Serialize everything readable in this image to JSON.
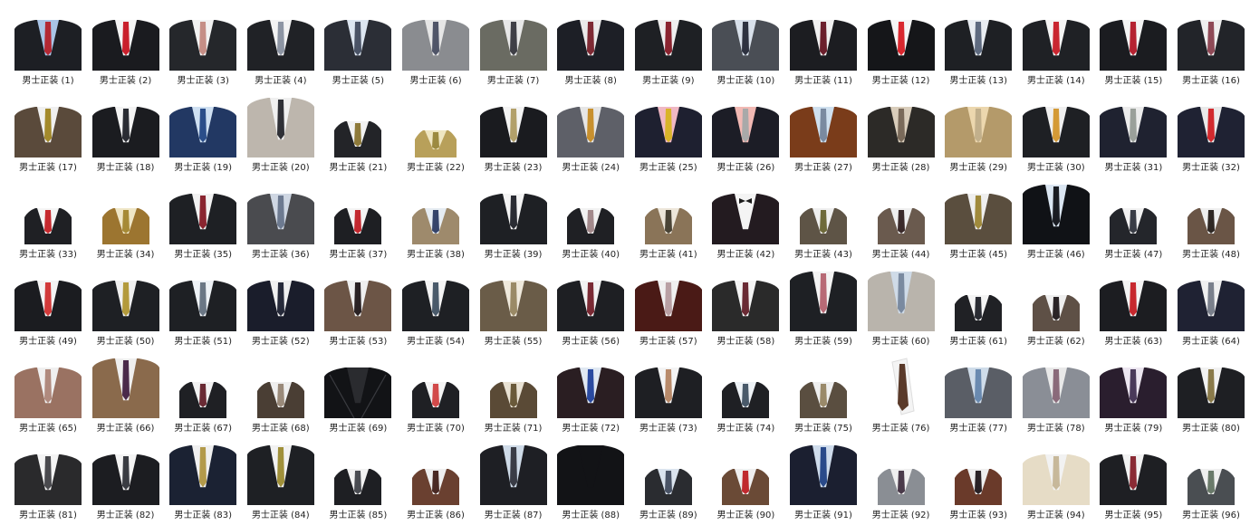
{
  "caption_label": "男士正装",
  "items": [
    {
      "n": 1,
      "label": "男士正装 (1)",
      "suit": "#1d1f24",
      "shirt": "#a9c4e6",
      "tie": "#b32833",
      "type": "full"
    },
    {
      "n": 2,
      "label": "男士正装 (2)",
      "suit": "#1a1b1f",
      "shirt": "#f4f4f4",
      "tie": "#c9202c",
      "type": "full"
    },
    {
      "n": 3,
      "label": "男士正装 (3)",
      "suit": "#25272b",
      "shirt": "#f2f2f2",
      "tie": "#c58e86",
      "type": "full"
    },
    {
      "n": 4,
      "label": "男士正装 (4)",
      "suit": "#202226",
      "shirt": "#f3f3f3",
      "tie": "#8d95a3",
      "type": "full"
    },
    {
      "n": 5,
      "label": "男士正装 (5)",
      "suit": "#2b2e36",
      "shirt": "#dde6f1",
      "tie": "#4a5366",
      "type": "full"
    },
    {
      "n": 6,
      "label": "男士正装 (6)",
      "suit": "#8a8c90",
      "shirt": "#e6e6e6",
      "tie": "#505568",
      "type": "full"
    },
    {
      "n": 7,
      "label": "男士正装 (7)",
      "suit": "#6a6b62",
      "shirt": "#e8e8e8",
      "tie": "#3f3f46",
      "type": "full"
    },
    {
      "n": 8,
      "label": "男士正装 (8)",
      "suit": "#1d1f26",
      "shirt": "#eaeaea",
      "tie": "#7e2a34",
      "type": "full"
    },
    {
      "n": 9,
      "label": "男士正装 (9)",
      "suit": "#1e2024",
      "shirt": "#efefef",
      "tie": "#8a2430",
      "type": "full"
    },
    {
      "n": 10,
      "label": "男士正装 (10)",
      "suit": "#4a4e55",
      "shirt": "#d8e0ea",
      "tie": "#2e3240",
      "type": "full"
    },
    {
      "n": 11,
      "label": "男士正装 (11)",
      "suit": "#1c1d21",
      "shirt": "#f1f1f1",
      "tie": "#6b1f2c",
      "type": "full"
    },
    {
      "n": 12,
      "label": "男士正装 (12)",
      "suit": "#151619",
      "shirt": "#f5f5f5",
      "tie": "#d9282f",
      "type": "full"
    },
    {
      "n": 13,
      "label": "男士正装 (13)",
      "suit": "#1e2024",
      "shirt": "#e9edf2",
      "tie": "#5f6b80",
      "type": "full"
    },
    {
      "n": 14,
      "label": "男士正装 (14)",
      "suit": "#1f2125",
      "shirt": "#f4f4f4",
      "tie": "#c92630",
      "type": "full"
    },
    {
      "n": 15,
      "label": "男士正装 (15)",
      "suit": "#1b1c20",
      "shirt": "#f4f4f4",
      "tie": "#b52231",
      "type": "full"
    },
    {
      "n": 16,
      "label": "男士正装 (16)",
      "suit": "#222429",
      "shirt": "#efefef",
      "tie": "#8f4a57",
      "type": "full"
    },
    {
      "n": 17,
      "label": "男士正装 (17)",
      "suit": "#5a4a3b",
      "shirt": "#f0f0f0",
      "tie": "#a38a2c",
      "type": "full"
    },
    {
      "n": 18,
      "label": "男士正装 (18)",
      "suit": "#1b1c20",
      "shirt": "#f4f4f4",
      "tie": "#2a2c33",
      "type": "full"
    },
    {
      "n": 19,
      "label": "男士正装 (19)",
      "suit": "#223863",
      "shirt": "#cfe0f2",
      "tie": "#2b4e8a",
      "type": "full"
    },
    {
      "n": 20,
      "label": "男士正装 (20)",
      "suit": "#bdb6ad",
      "shirt": "#f0f0f0",
      "tie": "#2f3036",
      "type": "full-tall"
    },
    {
      "n": 21,
      "label": "男士正装 (21)",
      "suit": "#232428",
      "shirt": "#f2f2f2",
      "tie": "#8e7a3a",
      "type": "narrow"
    },
    {
      "n": 22,
      "label": "男士正装 (22)",
      "suit": "#b8a05a",
      "shirt": "#efe6c2",
      "tie": "#9c8a40",
      "type": "narrow-low"
    },
    {
      "n": 23,
      "label": "男士正装 (23)",
      "suit": "#1a1b1f",
      "shirt": "#f4f4f4",
      "tie": "#b2a06a",
      "type": "full"
    },
    {
      "n": 24,
      "label": "男士正装 (24)",
      "suit": "#5e6068",
      "shirt": "#e6e6e6",
      "tie": "#c8902e",
      "type": "full"
    },
    {
      "n": 25,
      "label": "男士正装 (25)",
      "suit": "#1e2030",
      "shirt": "#f0b8c4",
      "tie": "#d9b42a",
      "type": "full"
    },
    {
      "n": 26,
      "label": "男士正装 (26)",
      "suit": "#1c1d26",
      "shirt": "#f2b9b4",
      "tie": "#a9a9a9",
      "type": "full"
    },
    {
      "n": 27,
      "label": "男士正装 (27)",
      "suit": "#7a3c1a",
      "shirt": "#cfe0ef",
      "tie": "#7a8aa0",
      "type": "full"
    },
    {
      "n": 28,
      "label": "男士正装 (28)",
      "suit": "#2c2a27",
      "shirt": "#d9cdbb",
      "tie": "#7a6a5a",
      "type": "full"
    },
    {
      "n": 29,
      "label": "男士正装 (29)",
      "suit": "#b49a6a",
      "shirt": "#ecd7ae",
      "tie": "#c2b08c",
      "type": "full"
    },
    {
      "n": 30,
      "label": "男士正装 (30)",
      "suit": "#1e2024",
      "shirt": "#f0f0f0",
      "tie": "#d49a36",
      "type": "full"
    },
    {
      "n": 31,
      "label": "男士正装 (31)",
      "suit": "#1f2230",
      "shirt": "#ececec",
      "tie": "#9aa09a",
      "type": "full"
    },
    {
      "n": 32,
      "label": "男士正装 (32)",
      "suit": "#1f2233",
      "shirt": "#eaeaea",
      "tie": "#d22a2e",
      "type": "full"
    },
    {
      "n": 33,
      "label": "男士正装 (33)",
      "suit": "#1f2024",
      "shirt": "#f5f5f5",
      "tie": "#c62a2f",
      "type": "narrow"
    },
    {
      "n": 34,
      "label": "男士正装 (34)",
      "suit": "#9c7530",
      "shirt": "#efe6c7",
      "tie": "#a68a36",
      "type": "narrow"
    },
    {
      "n": 35,
      "label": "男士正装 (35)",
      "suit": "#1e2024",
      "shirt": "#f2f2f2",
      "tie": "#8a2530",
      "type": "full"
    },
    {
      "n": 36,
      "label": "男士正装 (36)",
      "suit": "#4a4b4f",
      "shirt": "#cfd7e3",
      "tie": "#6d7a90",
      "type": "full"
    },
    {
      "n": 37,
      "label": "男士正装 (37)",
      "suit": "#1e1f23",
      "shirt": "#f4f4f4",
      "tie": "#c2282f",
      "type": "narrow"
    },
    {
      "n": 38,
      "label": "男士正装 (38)",
      "suit": "#9e8a6c",
      "shirt": "#e6ecf2",
      "tie": "#35446a",
      "type": "narrow"
    },
    {
      "n": 39,
      "label": "男士正装 (39)",
      "suit": "#1e2024",
      "shirt": "#f4f4f4",
      "tie": "#2a2c33",
      "type": "full"
    },
    {
      "n": 40,
      "label": "男士正装 (40)",
      "suit": "#1f2024",
      "shirt": "#f2f2f2",
      "tie": "#a38a8c",
      "type": "narrow"
    },
    {
      "n": 41,
      "label": "男士正装 (41)",
      "suit": "#8a7458",
      "shirt": "#ede6da",
      "tie": "#4a4436",
      "type": "narrow"
    },
    {
      "n": 42,
      "label": "男士正装 (42)",
      "suit": "#231b20",
      "shirt": "#f4f4f4",
      "tie": "#1a1a1a",
      "type": "tux"
    },
    {
      "n": 43,
      "label": "男士正装 (43)",
      "suit": "#5e5446",
      "shirt": "#efefef",
      "tie": "#6e6a3a",
      "type": "narrow"
    },
    {
      "n": 44,
      "label": "男士正装 (44)",
      "suit": "#6a5a4e",
      "shirt": "#efefef",
      "tie": "#3a2a2a",
      "type": "narrow"
    },
    {
      "n": 45,
      "label": "男士正装 (45)",
      "suit": "#5a4e3e",
      "shirt": "#efefef",
      "tie": "#a08a3c",
      "type": "full"
    },
    {
      "n": 46,
      "label": "男士正装 (46)",
      "suit": "#101216",
      "shirt": "#dbe6f2",
      "tie": "#1a1c22",
      "type": "full-tall"
    },
    {
      "n": 47,
      "label": "男士正装 (47)",
      "suit": "#24262b",
      "shirt": "#f2f2f2",
      "tie": "#3a3d46",
      "type": "narrow"
    },
    {
      "n": 48,
      "label": "男士正装 (48)",
      "suit": "#6a5546",
      "shirt": "#efefef",
      "tie": "#2f2824",
      "type": "narrow"
    },
    {
      "n": 49,
      "label": "男士正装 (49)",
      "suit": "#1b1c20",
      "shirt": "#f4f4f4",
      "tie": "#d23a3a",
      "type": "full"
    },
    {
      "n": 50,
      "label": "男士正装 (50)",
      "suit": "#1e2024",
      "shirt": "#f0f0f0",
      "tie": "#b39a3c",
      "type": "full"
    },
    {
      "n": 51,
      "label": "男士正装 (51)",
      "suit": "#1e2024",
      "shirt": "#eef2f6",
      "tie": "#6b7785",
      "type": "full"
    },
    {
      "n": 52,
      "label": "男士正装 (52)",
      "suit": "#1a1d2b",
      "shirt": "#f0f0f0",
      "tie": "#262a3a",
      "type": "full"
    },
    {
      "n": 53,
      "label": "男士正装 (53)",
      "suit": "#6c5546",
      "shirt": "#efefef",
      "tie": "#2a2224",
      "type": "full"
    },
    {
      "n": 54,
      "label": "男士正装 (54)",
      "suit": "#1e2024",
      "shirt": "#f4f4f4",
      "tie": "#4a5a6a",
      "type": "full"
    },
    {
      "n": 55,
      "label": "男士正装 (55)",
      "suit": "#6a5c48",
      "shirt": "#efe9dc",
      "tie": "#9a8a66",
      "type": "full"
    },
    {
      "n": 56,
      "label": "男士正装 (56)",
      "suit": "#1e1f23",
      "shirt": "#f2f2f2",
      "tie": "#7a2a34",
      "type": "full"
    },
    {
      "n": 57,
      "label": "男士正装 (57)",
      "suit": "#4a1a16",
      "shirt": "#f0f0f0",
      "tie": "#b9a0a4",
      "type": "full"
    },
    {
      "n": 58,
      "label": "男士正装 (58)",
      "suit": "#2a2a2a",
      "shirt": "#f4f4f4",
      "tie": "#6a2a34",
      "type": "full"
    },
    {
      "n": 59,
      "label": "男士正装 (59)",
      "suit": "#1e2024",
      "shirt": "#f4f4f4",
      "tie": "#b86a76",
      "type": "full-tall"
    },
    {
      "n": 60,
      "label": "男士正装 (60)",
      "suit": "#b9b4ac",
      "shirt": "#cfdbe8",
      "tie": "#7a8aa0",
      "type": "full-tall"
    },
    {
      "n": 61,
      "label": "男士正装 (61)",
      "suit": "#202125",
      "shirt": "#f4f4f4",
      "tie": "#2a2c33",
      "type": "narrow"
    },
    {
      "n": 62,
      "label": "男士正装 (62)",
      "suit": "#5e5046",
      "shirt": "#efefef",
      "tie": "#2a2426",
      "type": "narrow"
    },
    {
      "n": 63,
      "label": "男士正装 (63)",
      "suit": "#1c1d21",
      "shirt": "#f4f4f4",
      "tie": "#c7282e",
      "type": "full"
    },
    {
      "n": 64,
      "label": "男士正装 (64)",
      "suit": "#1f2233",
      "shirt": "#f0f0f0",
      "tie": "#7a808c",
      "type": "full"
    },
    {
      "n": 65,
      "label": "男士正装 (65)",
      "suit": "#9a7262",
      "shirt": "#f0f0f0",
      "tie": "#b08a7e",
      "type": "full"
    },
    {
      "n": 66,
      "label": "男士正装 (66)",
      "suit": "#8a6a4c",
      "shirt": "#efefef",
      "tie": "#4a2a4a",
      "type": "full-tall"
    },
    {
      "n": 67,
      "label": "男士正装 (67)",
      "suit": "#1f2024",
      "shirt": "#f2f2f2",
      "tie": "#6a2a34",
      "type": "narrow"
    },
    {
      "n": 68,
      "label": "男士正装 (68)",
      "suit": "#4a3e34",
      "shirt": "#efefef",
      "tie": "#9a8a7a",
      "type": "narrow"
    },
    {
      "n": 69,
      "label": "男士正装 (69)",
      "suit": "#121316",
      "shirt": "#2a2b2f",
      "tie": "#121316",
      "type": "leather"
    },
    {
      "n": 70,
      "label": "男士正装 (70)",
      "suit": "#1f2024",
      "shirt": "#f4f4f4",
      "tie": "#d24a4a",
      "type": "narrow"
    },
    {
      "n": 71,
      "label": "男士正装 (71)",
      "suit": "#5a4a36",
      "shirt": "#e9e2d4",
      "tie": "#6a5a3a",
      "type": "narrow"
    },
    {
      "n": 72,
      "label": "男士正装 (72)",
      "suit": "#2a1e22",
      "shirt": "#e0e8f2",
      "tie": "#2a4aa0",
      "type": "full"
    },
    {
      "n": 73,
      "label": "男士正装 (73)",
      "suit": "#1e1f23",
      "shirt": "#f4f4f4",
      "tie": "#b88a6a",
      "type": "full"
    },
    {
      "n": 74,
      "label": "男士正装 (74)",
      "suit": "#1f2024",
      "shirt": "#eef2f6",
      "tie": "#4a5a6a",
      "type": "narrow"
    },
    {
      "n": 75,
      "label": "男士正装 (75)",
      "suit": "#5a4e40",
      "shirt": "#efefef",
      "tie": "#9a8a6a",
      "type": "narrow"
    },
    {
      "n": 76,
      "label": "男士正装 (76)",
      "suit": "#ffffff",
      "shirt": "#f2f2f2",
      "tie": "#5a3a2a",
      "type": "tie-only"
    },
    {
      "n": 77,
      "label": "男士正装 (77)",
      "suit": "#5a5e66",
      "shirt": "#cfdce9",
      "tie": "#6a8ab0",
      "type": "full"
    },
    {
      "n": 78,
      "label": "男士正装 (78)",
      "suit": "#8a8e96",
      "shirt": "#e9e9e9",
      "tie": "#8a6a7a",
      "type": "full"
    },
    {
      "n": 79,
      "label": "男士正装 (79)",
      "suit": "#2a1e2e",
      "shirt": "#ece6f0",
      "tie": "#4a3a5a",
      "type": "full"
    },
    {
      "n": 80,
      "label": "男士正装 (80)",
      "suit": "#1e1f23",
      "shirt": "#f2f2f2",
      "tie": "#8a7a4a",
      "type": "full"
    },
    {
      "n": 81,
      "label": "男士正装 (81)",
      "suit": "#2a2a2c",
      "shirt": "#f4f4f4",
      "tie": "#4a4a4e",
      "type": "full"
    },
    {
      "n": 82,
      "label": "男士正装 (82)",
      "suit": "#1c1d21",
      "shirt": "#f4f4f4",
      "tie": "#3a3c42",
      "type": "full"
    },
    {
      "n": 83,
      "label": "男士正装 (83)",
      "suit": "#1b2233",
      "shirt": "#f0f0f0",
      "tie": "#b39a4a",
      "type": "full-tall"
    },
    {
      "n": 84,
      "label": "男士正装 (84)",
      "suit": "#1e2024",
      "shirt": "#f2f2f2",
      "tie": "#a0903a",
      "type": "full-tall"
    },
    {
      "n": 85,
      "label": "男士正装 (85)",
      "suit": "#1e1f23",
      "shirt": "#f2f2f2",
      "tie": "#4a4c52",
      "type": "narrow"
    },
    {
      "n": 86,
      "label": "男士正装 (86)",
      "suit": "#6a4030",
      "shirt": "#efefef",
      "tie": "#4a2a24",
      "type": "narrow"
    },
    {
      "n": 87,
      "label": "男士正装 (87)",
      "suit": "#1e1f24",
      "shirt": "#cfdbe8",
      "tie": "#3a3c46",
      "type": "full-tall"
    },
    {
      "n": 88,
      "label": "男士正装 (88)",
      "suit": "#121316",
      "shirt": "#121316",
      "tie": "#121316",
      "type": "full-tall"
    },
    {
      "n": 89,
      "label": "男士正装 (89)",
      "suit": "#2a2c30",
      "shirt": "#dbe4ee",
      "tie": "#4a5466",
      "type": "narrow"
    },
    {
      "n": 90,
      "label": "男士正装 (90)",
      "suit": "#6a4a36",
      "shirt": "#efefef",
      "tie": "#c02a2e",
      "type": "narrow"
    },
    {
      "n": 91,
      "label": "男士正装 (91)",
      "suit": "#1b1f30",
      "shirt": "#cfdcec",
      "tie": "#2a4a8a",
      "type": "full-tall"
    },
    {
      "n": 92,
      "label": "男士正装 (92)",
      "suit": "#8a8e94",
      "shirt": "#efefef",
      "tie": "#4a3a4a",
      "type": "narrow"
    },
    {
      "n": 93,
      "label": "男士正装 (93)",
      "suit": "#6a3a2a",
      "shirt": "#efefef",
      "tie": "#2a2226",
      "type": "narrow"
    },
    {
      "n": 94,
      "label": "男士正装 (94)",
      "suit": "#e6dcc6",
      "shirt": "#f2f2f2",
      "tie": "#c7b89a",
      "type": "full"
    },
    {
      "n": 95,
      "label": "男士正装 (95)",
      "suit": "#1e1f23",
      "shirt": "#f2f2f2",
      "tie": "#8a2a34",
      "type": "full"
    },
    {
      "n": 96,
      "label": "男士正装 (96)",
      "suit": "#4a4e52",
      "shirt": "#efefef",
      "tie": "#6a7a6a",
      "type": "narrow"
    }
  ]
}
